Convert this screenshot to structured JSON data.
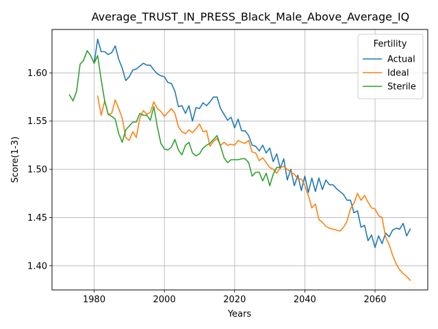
{
  "chart_data": {
    "type": "line",
    "title": "Average_TRUST_IN_PRESS_Black_Male_Above_Average_IQ",
    "xlabel": "Years",
    "ylabel": "Score(1-3)",
    "xlim": [
      1968,
      2075
    ],
    "ylim": [
      1.375,
      1.645
    ],
    "xticks": [
      1980,
      2000,
      2020,
      2040,
      2060
    ],
    "yticks": [
      1.4,
      1.45,
      1.5,
      1.55,
      1.6
    ],
    "grid": true,
    "legend": {
      "title": "Fertility",
      "placement": "top-right"
    },
    "series": [
      {
        "name": "Actual",
        "color": "#1f77b4",
        "x": [
          1980,
          1981,
          1982,
          1983,
          1984,
          1985,
          1986,
          1987,
          1988,
          1989,
          1990,
          1991,
          1992,
          1993,
          1994,
          1995,
          1996,
          1997,
          1998,
          1999,
          2000,
          2001,
          2002,
          2003,
          2004,
          2005,
          2006,
          2007,
          2008,
          2009,
          2010,
          2011,
          2012,
          2013,
          2014,
          2015,
          2016,
          2017,
          2018,
          2019,
          2020,
          2021,
          2022,
          2023,
          2024,
          2025,
          2026,
          2027,
          2028,
          2029,
          2030,
          2031,
          2032,
          2033,
          2034,
          2035,
          2036,
          2037,
          2038,
          2039,
          2040,
          2041,
          2042,
          2043,
          2044,
          2045,
          2046,
          2047,
          2048,
          2049,
          2050,
          2051,
          2052,
          2053,
          2054,
          2055,
          2056,
          2057,
          2058,
          2059,
          2060,
          2061,
          2062,
          2063,
          2064,
          2065,
          2066,
          2067,
          2068,
          2069,
          2070
        ],
        "y": [
          1.61,
          1.635,
          1.622,
          1.622,
          1.619,
          1.621,
          1.628,
          1.614,
          1.605,
          1.592,
          1.596,
          1.603,
          1.604,
          1.607,
          1.61,
          1.608,
          1.608,
          1.603,
          1.599,
          1.597,
          1.596,
          1.59,
          1.589,
          1.581,
          1.565,
          1.566,
          1.558,
          1.566,
          1.55,
          1.564,
          1.563,
          1.569,
          1.566,
          1.57,
          1.575,
          1.575,
          1.563,
          1.557,
          1.551,
          1.554,
          1.543,
          1.552,
          1.54,
          1.54,
          1.535,
          1.525,
          1.524,
          1.519,
          1.525,
          1.517,
          1.522,
          1.508,
          1.516,
          1.501,
          1.511,
          1.489,
          1.5,
          1.483,
          1.494,
          1.478,
          1.493,
          1.476,
          1.491,
          1.477,
          1.491,
          1.479,
          1.489,
          1.484,
          1.484,
          1.48,
          1.477,
          1.474,
          1.468,
          1.468,
          1.455,
          1.457,
          1.44,
          1.442,
          1.426,
          1.432,
          1.419,
          1.431,
          1.423,
          1.434,
          1.43,
          1.437,
          1.439,
          1.438,
          1.444,
          1.431,
          1.438
        ]
      },
      {
        "name": "Ideal",
        "color": "#ff7f0e",
        "x": [
          1981,
          1982,
          1983,
          1984,
          1985,
          1986,
          1987,
          1988,
          1989,
          1990,
          1991,
          1992,
          1993,
          1994,
          1995,
          1996,
          1997,
          1998,
          1999,
          2000,
          2001,
          2002,
          2003,
          2004,
          2005,
          2006,
          2007,
          2008,
          2009,
          2010,
          2011,
          2012,
          2013,
          2014,
          2015,
          2016,
          2017,
          2018,
          2019,
          2020,
          2021,
          2022,
          2023,
          2024,
          2025,
          2026,
          2027,
          2028,
          2029,
          2030,
          2031,
          2032,
          2033,
          2034,
          2035,
          2036,
          2037,
          2038,
          2039,
          2040,
          2041,
          2042,
          2043,
          2044,
          2045,
          2046,
          2047,
          2048,
          2049,
          2050,
          2051,
          2052,
          2053,
          2054,
          2055,
          2056,
          2057,
          2058,
          2059,
          2060,
          2061,
          2062,
          2063,
          2064,
          2065,
          2066,
          2067,
          2068,
          2069,
          2070
        ],
        "y": [
          1.576,
          1.556,
          1.571,
          1.557,
          1.558,
          1.572,
          1.563,
          1.553,
          1.533,
          1.53,
          1.539,
          1.533,
          1.553,
          1.561,
          1.557,
          1.559,
          1.57,
          1.563,
          1.56,
          1.555,
          1.559,
          1.563,
          1.558,
          1.544,
          1.539,
          1.537,
          1.541,
          1.538,
          1.542,
          1.547,
          1.539,
          1.54,
          1.524,
          1.529,
          1.532,
          1.525,
          1.528,
          1.525,
          1.526,
          1.525,
          1.53,
          1.528,
          1.527,
          1.53,
          1.518,
          1.517,
          1.509,
          1.512,
          1.507,
          1.502,
          1.5,
          1.496,
          1.502,
          1.503,
          1.5,
          1.497,
          1.495,
          1.49,
          1.49,
          1.483,
          1.473,
          1.46,
          1.464,
          1.448,
          1.445,
          1.441,
          1.439,
          1.438,
          1.437,
          1.436,
          1.44,
          1.446,
          1.459,
          1.465,
          1.475,
          1.468,
          1.473,
          1.466,
          1.46,
          1.459,
          1.452,
          1.45,
          1.43,
          1.422,
          1.411,
          1.402,
          1.396,
          1.392,
          1.389,
          1.385
        ]
      },
      {
        "name": "Sterile",
        "color": "#2ca02c",
        "x": [
          1973,
          1974,
          1975,
          1976,
          1977,
          1978,
          1979,
          1980,
          1981,
          1982,
          1983,
          1984,
          1985,
          1986,
          1987,
          1988,
          1989,
          1990,
          1991,
          1992,
          1993,
          1994,
          1995,
          1996,
          1997,
          1998,
          1999,
          2000,
          2001,
          2002,
          2003,
          2004,
          2005,
          2006,
          2007,
          2008,
          2009,
          2010,
          2011,
          2012,
          2013,
          2014,
          2015,
          2016,
          2017,
          2018,
          2019,
          2020,
          2021,
          2022,
          2023,
          2024,
          2025,
          2026,
          2027,
          2028,
          2029,
          2030,
          2031,
          2032,
          2033
        ],
        "y": [
          1.577,
          1.571,
          1.581,
          1.609,
          1.613,
          1.623,
          1.618,
          1.61,
          1.618,
          1.593,
          1.571,
          1.557,
          1.555,
          1.552,
          1.537,
          1.528,
          1.541,
          1.545,
          1.549,
          1.549,
          1.558,
          1.556,
          1.556,
          1.551,
          1.565,
          1.544,
          1.527,
          1.521,
          1.52,
          1.523,
          1.531,
          1.52,
          1.515,
          1.525,
          1.528,
          1.517,
          1.514,
          1.516,
          1.522,
          1.525,
          1.527,
          1.531,
          1.535,
          1.524,
          1.512,
          1.507,
          1.51,
          1.51,
          1.51,
          1.511,
          1.511,
          1.507,
          1.493,
          1.497,
          1.497,
          1.488,
          1.496,
          1.483,
          1.495,
          1.502,
          1.502
        ]
      }
    ]
  }
}
